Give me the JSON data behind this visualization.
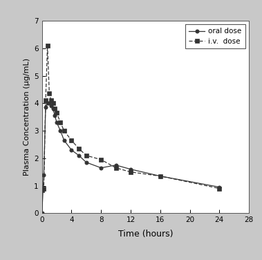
{
  "oral_x": [
    0,
    0.25,
    0.5,
    0.75,
    1.0,
    1.25,
    1.5,
    1.75,
    2.0,
    2.5,
    3.0,
    4.0,
    5.0,
    6.0,
    8.0,
    10.0,
    12.0,
    16.0,
    24.0
  ],
  "oral_y": [
    0,
    1.4,
    3.85,
    4.0,
    4.0,
    3.9,
    3.8,
    3.55,
    3.3,
    3.0,
    2.65,
    2.3,
    2.1,
    1.85,
    1.65,
    1.75,
    1.6,
    1.35,
    0.95
  ],
  "iv_x": [
    0,
    0.25,
    0.5,
    0.75,
    1.0,
    1.25,
    1.5,
    1.75,
    2.0,
    2.5,
    3.0,
    4.0,
    5.0,
    6.0,
    8.0,
    10.0,
    12.0,
    16.0,
    24.0
  ],
  "iv_y": [
    0.85,
    0.9,
    4.1,
    6.1,
    4.35,
    4.1,
    4.0,
    3.8,
    3.65,
    3.3,
    3.0,
    2.65,
    2.35,
    2.1,
    1.95,
    1.65,
    1.5,
    1.35,
    0.9
  ],
  "xlabel": "Time (hours)",
  "ylabel": "Plasma Concentration (µg/mL)",
  "legend_oral": "oral dose",
  "legend_iv": "i.v.  dose",
  "xlim": [
    0,
    28
  ],
  "ylim": [
    0,
    7
  ],
  "xticks": [
    0,
    4,
    8,
    12,
    16,
    20,
    24,
    28
  ],
  "yticks": [
    0,
    1,
    2,
    3,
    4,
    5,
    6,
    7
  ],
  "line_color": "#333333",
  "bg_color": "#ffffff",
  "fig_bg": "#c8c8c8"
}
